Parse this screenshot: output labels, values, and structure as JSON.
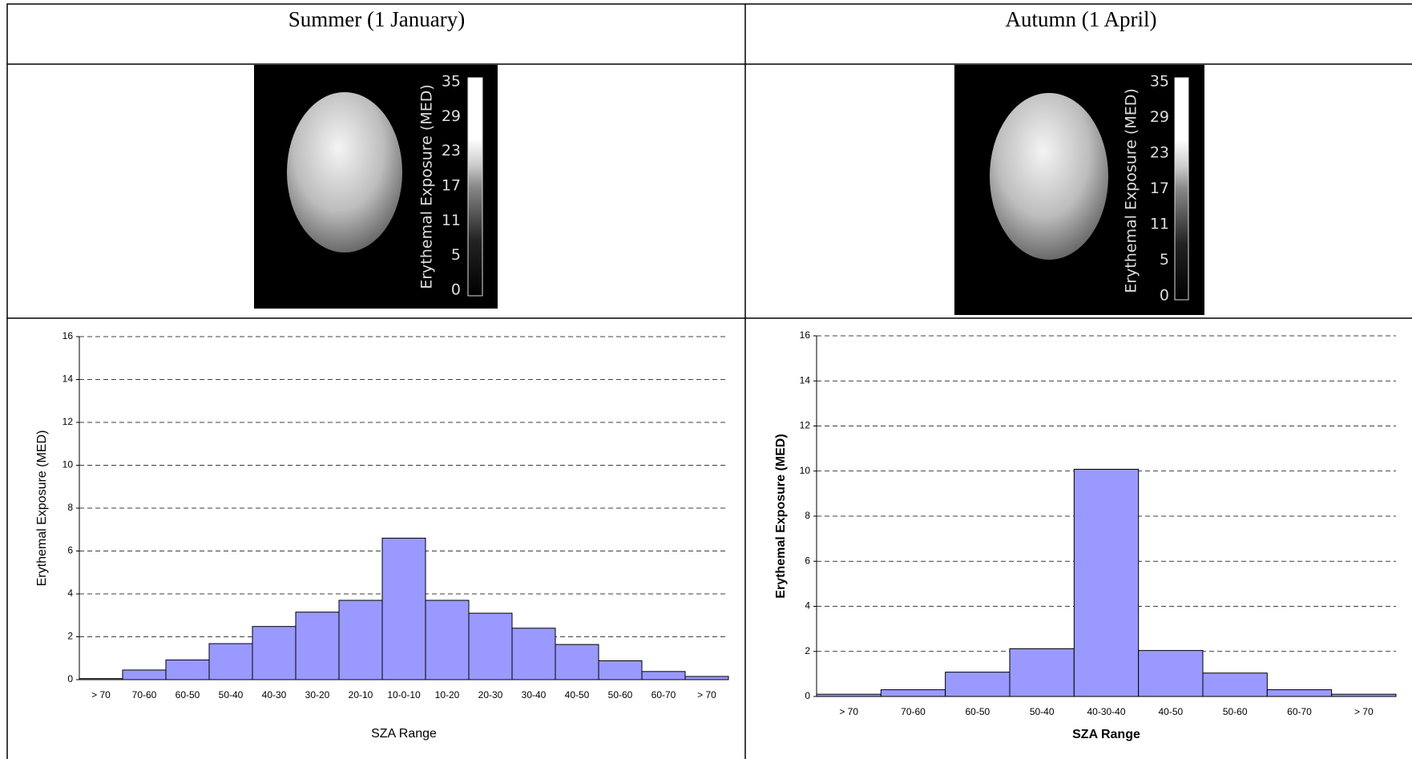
{
  "table": {
    "headers": [
      "Summer (1 January)",
      "Autumn (1 April)"
    ]
  },
  "images": [
    {
      "colorbar_label": "Erythemal Exposure (MED)",
      "colorbar_ticks": [
        "35",
        "29",
        "23",
        "17",
        "11",
        "5",
        "0"
      ]
    },
    {
      "colorbar_label": "Erythemal Exposure (MED)",
      "colorbar_ticks": [
        "35",
        "29",
        "23",
        "17",
        "11",
        "5",
        "0"
      ]
    }
  ],
  "chart_data": [
    {
      "type": "bar",
      "x_label": "SZA Range",
      "y_label": "Erythemal Exposure (MED)",
      "categories": [
        "> 70",
        "70-60",
        "60-50",
        "50-40",
        "40-30",
        "30-20",
        "20-10",
        "10-0-10",
        "10-20",
        "20-30",
        "30-40",
        "40-50",
        "50-60",
        "60-70",
        "> 70"
      ],
      "values": [
        0.05,
        0.45,
        0.92,
        1.68,
        2.48,
        3.15,
        3.7,
        6.6,
        3.7,
        3.1,
        2.4,
        1.64,
        0.88,
        0.38,
        0.15
      ],
      "color": "#9999ff",
      "ylim": [
        0,
        16
      ],
      "yticks": [
        0,
        2,
        4,
        6,
        8,
        10,
        12,
        14,
        16
      ],
      "grid": true
    },
    {
      "type": "bar",
      "x_label": "SZA Range",
      "y_label": "Erythemal Exposure (MED)",
      "categories": [
        "> 70",
        "70-60",
        "60-50",
        "50-40",
        "40-30-40",
        "40-50",
        "50-60",
        "60-70",
        "> 70"
      ],
      "values": [
        0.1,
        0.3,
        1.08,
        2.12,
        10.08,
        2.04,
        1.04,
        0.3,
        0.1
      ],
      "color": "#9999ff",
      "ylim": [
        0,
        16
      ],
      "yticks": [
        0,
        2,
        4,
        6,
        8,
        10,
        12,
        14,
        16
      ],
      "grid": true
    }
  ]
}
